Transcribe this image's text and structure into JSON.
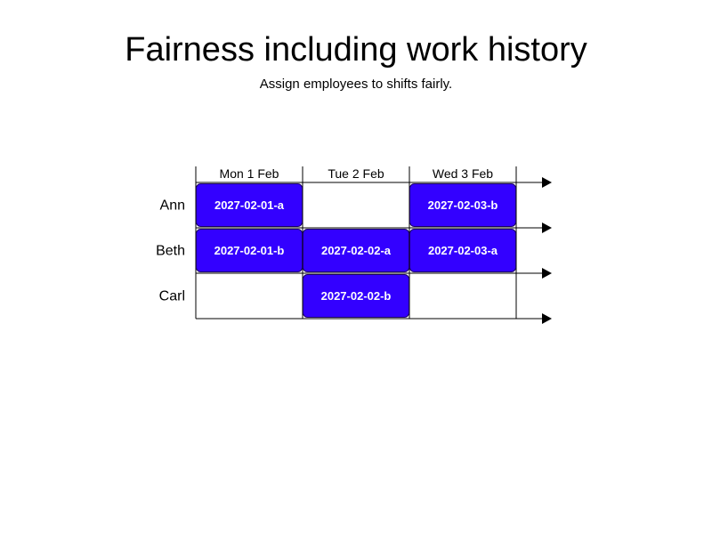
{
  "header": {
    "title": "Fairness including work history",
    "subtitle": "Assign employees to shifts fairly."
  },
  "days": [
    "Mon 1 Feb",
    "Tue 2 Feb",
    "Wed 3 Feb"
  ],
  "employees": [
    "Ann",
    "Beth",
    "Carl"
  ],
  "assignments": [
    {
      "employee": "Ann",
      "day": "Mon 1 Feb",
      "label": "2027-02-01-a"
    },
    {
      "employee": "Ann",
      "day": "Wed 3 Feb",
      "label": "2027-02-03-b"
    },
    {
      "employee": "Beth",
      "day": "Mon 1 Feb",
      "label": "2027-02-01-b"
    },
    {
      "employee": "Beth",
      "day": "Tue 2 Feb",
      "label": "2027-02-02-a"
    },
    {
      "employee": "Beth",
      "day": "Wed 3 Feb",
      "label": "2027-02-03-a"
    },
    {
      "employee": "Carl",
      "day": "Tue 2 Feb",
      "label": "2027-02-02-b"
    }
  ],
  "colors": {
    "shift_fill": "#3300ff",
    "shift_border": "#1a0066",
    "shift_text": "#ffffff",
    "grid_line": "#000000"
  }
}
